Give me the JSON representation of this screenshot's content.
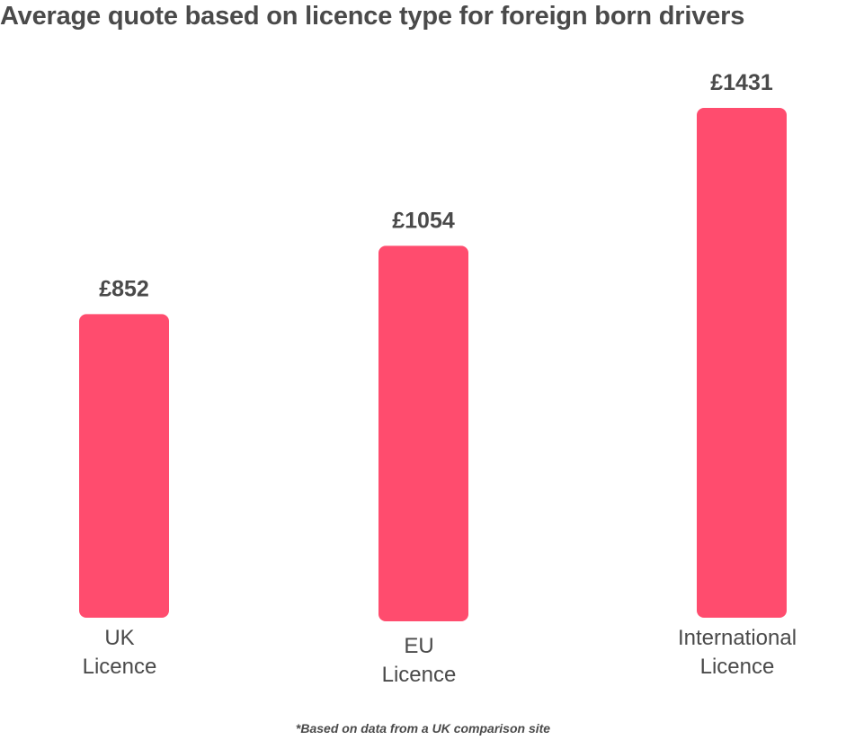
{
  "colors": {
    "bar": "#ff4c6e",
    "text": "#4a4a4a",
    "background": "#ffffff"
  },
  "footnote": "*Based on data from a UK comparison site",
  "chart_data": {
    "type": "bar",
    "title": "Average quote based on licence type for foreign born drivers",
    "xlabel": "",
    "ylabel": "",
    "categories": [
      [
        "UK",
        "Licence"
      ],
      [
        "EU",
        "Licence"
      ],
      [
        "International",
        "Licence"
      ]
    ],
    "values": [
      852,
      1054,
      1431
    ],
    "value_labels": [
      "£852",
      "£1054",
      "£1431"
    ],
    "ylim": [
      0,
      1431
    ],
    "grid": false,
    "legend": "none"
  }
}
